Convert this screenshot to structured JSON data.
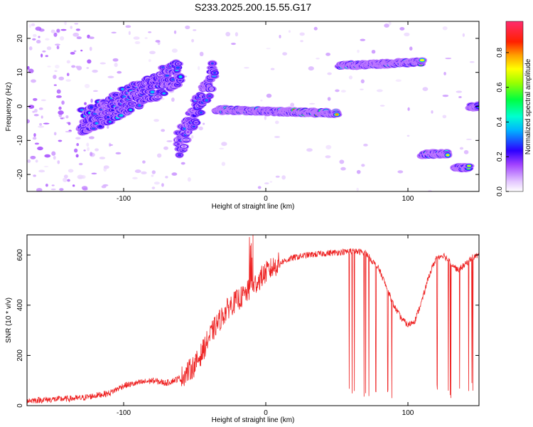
{
  "title": "S233.2025.200.15.55.G17",
  "chart_data": [
    {
      "type": "heatmap",
      "xlabel": "Height of straight line (km)",
      "ylabel": "Frequency (Hz)",
      "xlim": [
        -168,
        150
      ],
      "ylim": [
        -25,
        25
      ],
      "x_ticks": [
        -100,
        0,
        100
      ],
      "y_ticks": [
        -20,
        -10,
        0,
        10,
        20
      ],
      "colorbar": {
        "label": "Normalized spectral amplitude",
        "range": [
          0,
          0.98
        ],
        "ticks": [
          0.0,
          0.2,
          0.4,
          0.6,
          0.8
        ],
        "colors": [
          "#ffffff",
          "#e9c8ff",
          "#9b30ff",
          "#2d00ff",
          "#00c8ff",
          "#00ff60",
          "#ffff00",
          "#ff9a00",
          "#ff0000",
          "#ff2b6e"
        ]
      },
      "features": [
        {
          "x_start": -35,
          "x_end": 50,
          "freq_start": -1,
          "freq_end": -2,
          "peak_amplitude": 0.95
        },
        {
          "x_start": 52,
          "x_end": 110,
          "freq_start": 12,
          "freq_end": 13,
          "peak_amplitude": 0.9
        },
        {
          "x_start": 110,
          "x_end": 128,
          "freq_start": -14,
          "freq_end": -14,
          "peak_amplitude": 0.9
        },
        {
          "x_start": 133,
          "x_end": 143,
          "freq_start": -18,
          "freq_end": -18,
          "peak_amplitude": 0.7
        },
        {
          "x_start": 144,
          "x_end": 150,
          "freq_start": 0,
          "freq_end": 0,
          "peak_amplitude": 0.5
        },
        {
          "x_start": -130,
          "x_end": -60,
          "freq_start": -5,
          "freq_end": 10,
          "peak_amplitude": 0.35
        },
        {
          "x_start": -62,
          "x_end": -36,
          "freq_start": -12,
          "freq_end": 10,
          "peak_amplitude": 0.3
        }
      ]
    },
    {
      "type": "line",
      "xlabel": "Height of straight line (km)",
      "ylabel": "SNR (10 * v/v)",
      "xlim": [
        -168,
        150
      ],
      "ylim": [
        0,
        680
      ],
      "x_ticks": [
        -100,
        0,
        100
      ],
      "y_ticks": [
        0,
        200,
        400,
        600
      ],
      "color": "#ee2222",
      "x": [
        -168,
        -150,
        -130,
        -110,
        -100,
        -90,
        -80,
        -70,
        -60,
        -50,
        -45,
        -40,
        -35,
        -30,
        -25,
        -20,
        -15,
        -10,
        -5,
        0,
        10,
        20,
        30,
        40,
        50,
        60,
        70,
        80,
        85,
        90,
        95,
        100,
        105,
        110,
        115,
        120,
        125,
        130,
        135,
        140,
        145,
        150
      ],
      "y": [
        20,
        25,
        30,
        50,
        80,
        90,
        100,
        90,
        110,
        160,
        210,
        270,
        320,
        360,
        400,
        420,
        440,
        470,
        500,
        530,
        570,
        590,
        600,
        605,
        610,
        615,
        610,
        540,
        470,
        400,
        350,
        320,
        340,
        420,
        520,
        590,
        600,
        570,
        540,
        560,
        590,
        600
      ],
      "annotations": [
        {
          "x": -9,
          "y": 680,
          "note": "spike"
        }
      ]
    }
  ]
}
